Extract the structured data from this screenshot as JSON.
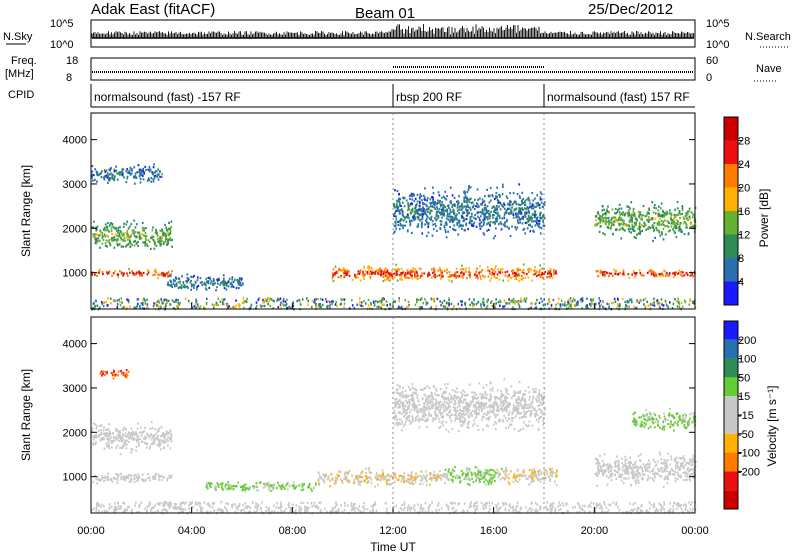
{
  "header": {
    "station": "Adak East (fitACF)",
    "beam": "Beam 01",
    "date": "25/Dec/2012"
  },
  "labels": {
    "nsky": "N.Sky",
    "nsearch": "N.Search",
    "freq": "Freq.",
    "freq_unit": "[MHz]",
    "nave": "Nave",
    "cpid": "CPID",
    "y_axis": "Slant Range [km]",
    "x_axis": "Time UT",
    "power_label": "Power [dB]",
    "velocity_label": "Velocity [m s⁻¹]"
  },
  "noise_panel": {
    "left_ticks": [
      "10^5",
      "10^0"
    ],
    "right_ticks": [
      "10^5",
      "10^0"
    ]
  },
  "freq_panel": {
    "left_ticks": [
      "18",
      "8"
    ],
    "right_ticks": [
      "60",
      "0"
    ]
  },
  "cpid_segments": [
    {
      "start_h": 0,
      "end_h": 12,
      "label": "normalsound (fast) -157 RF"
    },
    {
      "start_h": 12,
      "end_h": 18,
      "label": "rbsp 200 RF"
    },
    {
      "start_h": 18,
      "end_h": 24,
      "label": "normalsound (fast) 157 RF"
    }
  ],
  "chart_data": [
    {
      "type": "heatmap",
      "quantity": "Power",
      "xlabel": "Time UT",
      "ylabel": "Slant Range [km]",
      "xlim": [
        0,
        24
      ],
      "ylim": [
        180,
        4600
      ],
      "x_ticks": [
        "00:00",
        "04:00",
        "08:00",
        "12:00",
        "16:00",
        "20:00",
        "00:00"
      ],
      "y_ticks": [
        1000,
        2000,
        3000,
        4000
      ],
      "colorbar": {
        "label": "Power [dB]",
        "ticks": [
          4,
          8,
          12,
          16,
          20,
          24,
          28
        ],
        "range": [
          0,
          32
        ],
        "colors": [
          "#1a1aff",
          "#2a6fb0",
          "#2e8b57",
          "#66b032",
          "#ffb000",
          "#ff7a00",
          "#ee1010",
          "#cc0000"
        ]
      },
      "features": [
        {
          "t_start": 0.0,
          "t_end": 3.2,
          "r_center": 1000,
          "r_half": 120,
          "level": 28
        },
        {
          "t_start": 0.0,
          "t_end": 3.2,
          "r_center": 1850,
          "r_half": 400,
          "level": 14
        },
        {
          "t_start": 0.0,
          "t_end": 2.8,
          "r_center": 3250,
          "r_half": 260,
          "level": 8
        },
        {
          "t_start": 3.0,
          "t_end": 6.0,
          "r_center": 800,
          "r_half": 250,
          "level": 8
        },
        {
          "t_start": 9.5,
          "t_end": 18.5,
          "r_center": 1000,
          "r_half": 220,
          "level": 26
        },
        {
          "t_start": 12.0,
          "t_end": 18.0,
          "r_center": 2400,
          "r_half": 700,
          "level": 8
        },
        {
          "t_start": 20.0,
          "t_end": 24.0,
          "r_center": 1000,
          "r_half": 120,
          "level": 28
        },
        {
          "t_start": 20.0,
          "t_end": 24.0,
          "r_center": 2200,
          "r_half": 500,
          "level": 14
        }
      ]
    },
    {
      "type": "heatmap",
      "quantity": "Velocity",
      "xlabel": "Time UT",
      "ylabel": "Slant Range [km]",
      "xlim": [
        0,
        24
      ],
      "ylim": [
        180,
        4600
      ],
      "x_ticks": [
        "00:00",
        "04:00",
        "08:00",
        "12:00",
        "16:00",
        "20:00",
        "00:00"
      ],
      "y_ticks": [
        1000,
        2000,
        3000,
        4000
      ],
      "colorbar": {
        "label": "Velocity [m s⁻¹]",
        "ticks": [
          200,
          100,
          50,
          15,
          -15,
          -50,
          -100,
          -200
        ],
        "range": [
          -250,
          250
        ],
        "colors": [
          "#cc0000",
          "#ee1010",
          "#ff7a00",
          "#ffb000",
          "#c8c8c8",
          "#c8c8c8",
          "#66cc33",
          "#2e8b57",
          "#2a6fb0",
          "#1a1aff"
        ]
      },
      "features": [
        {
          "t_start": 0.0,
          "t_end": 3.2,
          "r_center": 1000,
          "r_half": 150,
          "level": 0
        },
        {
          "t_start": 0.0,
          "t_end": 3.2,
          "r_center": 1900,
          "r_half": 400,
          "level": 0
        },
        {
          "t_start": 0.3,
          "t_end": 1.5,
          "r_center": 3350,
          "r_half": 150,
          "level": -150
        },
        {
          "t_start": 4.5,
          "t_end": 9.0,
          "r_center": 800,
          "r_half": 150,
          "level": 60
        },
        {
          "t_start": 9.0,
          "t_end": 14.0,
          "r_center": 1000,
          "r_half": 250,
          "level": -40
        },
        {
          "t_start": 14.0,
          "t_end": 16.3,
          "r_center": 1050,
          "r_half": 300,
          "level": 60
        },
        {
          "t_start": 16.3,
          "t_end": 18.5,
          "r_center": 1050,
          "r_half": 250,
          "level": -40
        },
        {
          "t_start": 12.0,
          "t_end": 18.0,
          "r_center": 2600,
          "r_half": 700,
          "level": 0
        },
        {
          "t_start": 20.0,
          "t_end": 24.0,
          "r_center": 1200,
          "r_half": 450,
          "level": 0
        },
        {
          "t_start": 21.5,
          "t_end": 24.0,
          "r_center": 2300,
          "r_half": 300,
          "level": 60
        }
      ]
    }
  ]
}
